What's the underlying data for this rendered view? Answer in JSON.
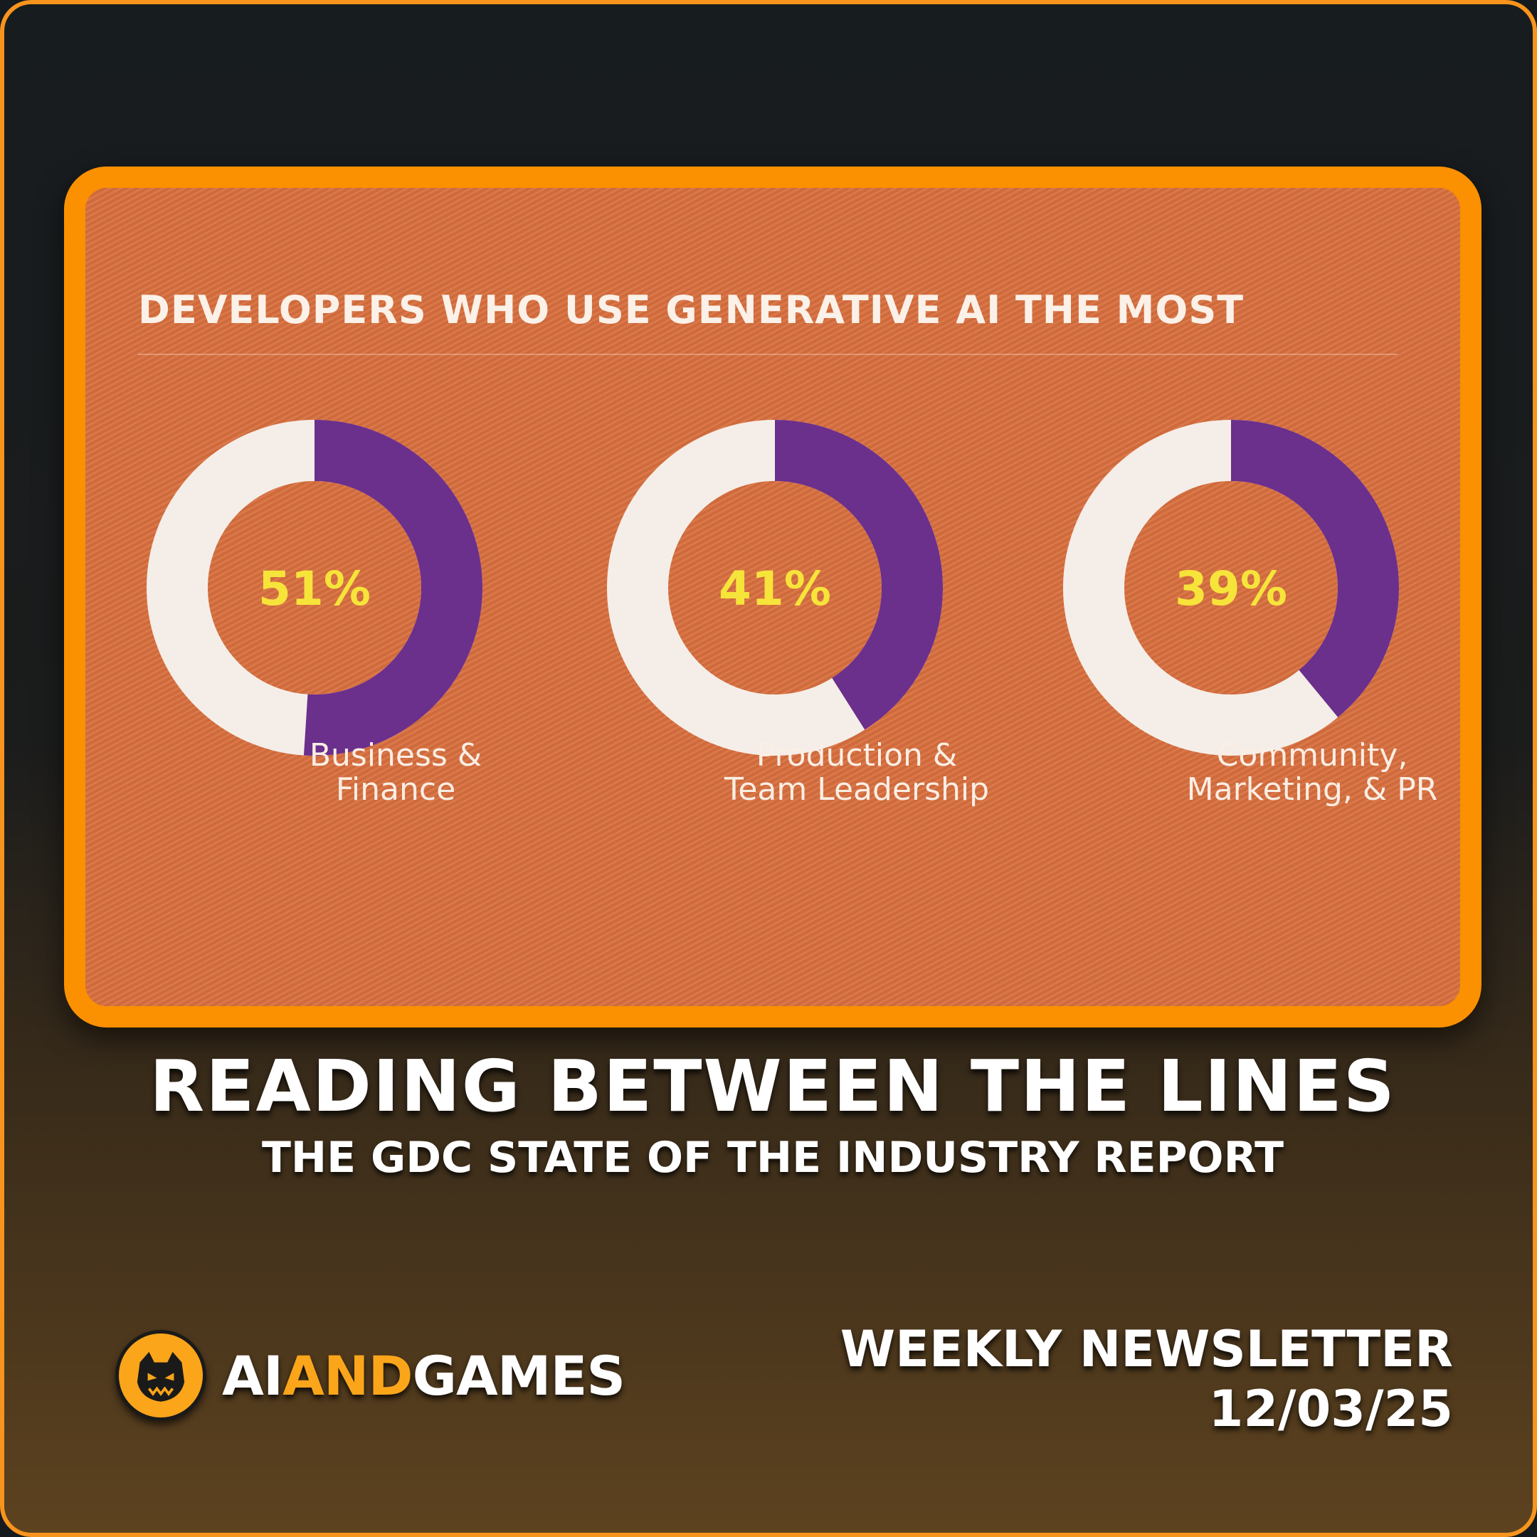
{
  "chart_data": {
    "type": "pie",
    "title": "DEVELOPERS WHO USE GENERATIVE AI THE MOST",
    "categories": [
      "Business & Finance",
      "Production & Team Leadership",
      "Community, Marketing, & PR"
    ],
    "category_lines": [
      [
        "Business &",
        "Finance"
      ],
      [
        "Production &",
        "Team Leadership"
      ],
      [
        "Community,",
        "Marketing, & PR"
      ]
    ],
    "values": [
      51,
      41,
      39
    ],
    "value_labels": [
      "51%",
      "41%",
      "39%"
    ],
    "unit": "%",
    "colors": {
      "filled": "#6b2f8c",
      "remainder": "#f5eee8",
      "value_text": "#f7e43a"
    }
  },
  "headline": "READING BETWEEN THE LINES",
  "subheadline": "THE GDC STATE OF THE INDUSTRY REPORT",
  "brand": {
    "part1": "AI",
    "part2": "AND",
    "part3": "GAMES",
    "logo_icon": "monster-face-icon",
    "accent": "#fba51a"
  },
  "newsletter": {
    "label": "WEEKLY NEWSLETTER",
    "date": "12/03/25"
  },
  "colors": {
    "frame_border": "#f7941d",
    "card_border": "#fb9000",
    "card_bg": "#d9703f"
  }
}
